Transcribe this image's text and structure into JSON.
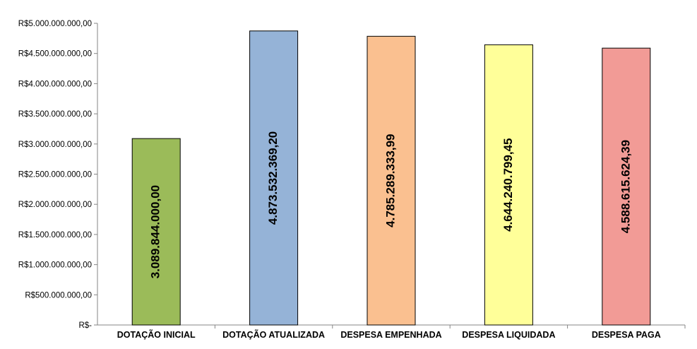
{
  "chart_data": {
    "type": "bar",
    "title": "",
    "xlabel": "",
    "ylabel": "",
    "ylim": [
      0,
      5000000000
    ],
    "y_ticks": [
      {
        "value": 0,
        "label": "R$-"
      },
      {
        "value": 500000000,
        "label": "R$500.000.000,00"
      },
      {
        "value": 1000000000,
        "label": "R$1.000.000.000,00"
      },
      {
        "value": 1500000000,
        "label": "R$1.500.000.000,00"
      },
      {
        "value": 2000000000,
        "label": "R$2.000.000.000,00"
      },
      {
        "value": 2500000000,
        "label": "R$2.500.000.000,00"
      },
      {
        "value": 3000000000,
        "label": "R$3.000.000.000,00"
      },
      {
        "value": 3500000000,
        "label": "R$3.500.000.000,00"
      },
      {
        "value": 4000000000,
        "label": "R$4.000.000.000,00"
      },
      {
        "value": 4500000000,
        "label": "R$4.500.000.000,00"
      },
      {
        "value": 5000000000,
        "label": "R$5.000.000.000,00"
      }
    ],
    "categories": [
      "DOTAÇÃO INICIAL",
      "DOTAÇÃO ATUALIZADA",
      "DESPESA EMPENHADA",
      "DESPESA LIQUIDADA",
      "DESPESA PAGA"
    ],
    "values": [
      3089844000.0,
      4873532369.2,
      4785289333.99,
      4644240799.45,
      4588615624.39
    ],
    "data_labels": [
      "3.089.844.000,00",
      "4.873.532.369,20",
      "4.785.289.333,99",
      "4.644.240.799,45",
      "4.588.615.624,39"
    ],
    "bar_colors": [
      "#9bbb59",
      "#95b3d7",
      "#fac090",
      "#ffff99",
      "#f29b96"
    ],
    "grid": false,
    "legend": "none"
  }
}
